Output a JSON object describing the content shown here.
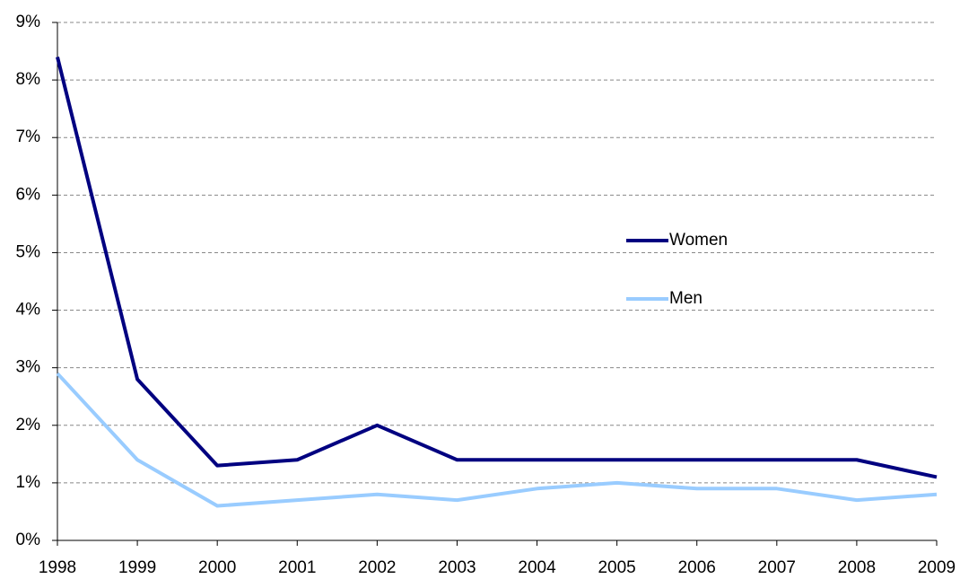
{
  "chart_data": {
    "type": "line",
    "categories": [
      "1998",
      "1999",
      "2000",
      "2001",
      "2002",
      "2003",
      "2004",
      "2005",
      "2006",
      "2007",
      "2008",
      "2009"
    ],
    "series": [
      {
        "name": "Women",
        "color": "#000080",
        "values": [
          8.4,
          2.8,
          1.3,
          1.4,
          2.0,
          1.4,
          1.4,
          1.4,
          1.4,
          1.4,
          1.4,
          1.1
        ]
      },
      {
        "name": "Men",
        "color": "#99ccff",
        "values": [
          2.9,
          1.4,
          0.6,
          0.7,
          0.8,
          0.7,
          0.9,
          1.0,
          0.9,
          0.9,
          0.7,
          0.8
        ]
      }
    ],
    "ylim": [
      0,
      9
    ],
    "yticks": [
      {
        "value": 0,
        "label": "0%"
      },
      {
        "value": 1,
        "label": "1%"
      },
      {
        "value": 2,
        "label": "2%"
      },
      {
        "value": 3,
        "label": "3%"
      },
      {
        "value": 4,
        "label": "4%"
      },
      {
        "value": 5,
        "label": "5%"
      },
      {
        "value": 6,
        "label": "6%"
      },
      {
        "value": 7,
        "label": "7%"
      },
      {
        "value": 8,
        "label": "8%"
      },
      {
        "value": 9,
        "label": "9%"
      }
    ],
    "grid": true,
    "legend": "right"
  }
}
